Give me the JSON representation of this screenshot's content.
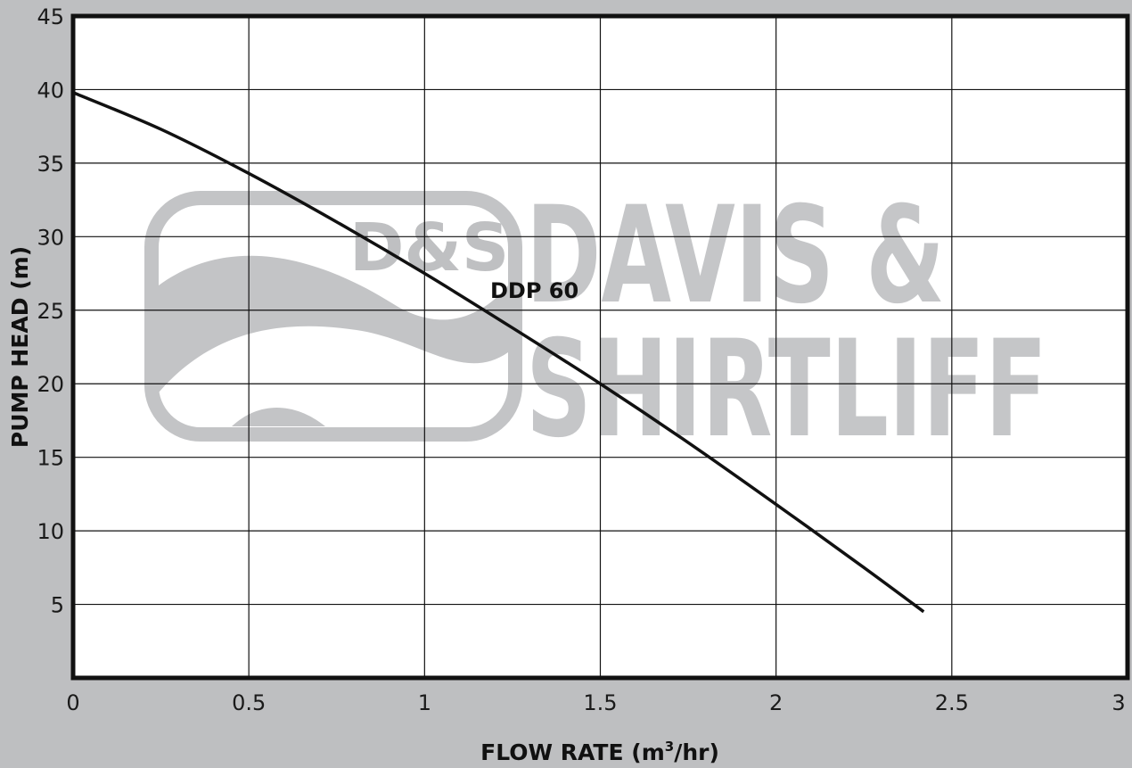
{
  "chart_data": {
    "type": "line",
    "title": "",
    "xlabel": "FLOW RATE (m",
    "xlabel_sup": "3",
    "xlabel_tail": "/hr)",
    "ylabel": "PUMP HEAD (m)",
    "xlim": [
      0,
      3
    ],
    "ylim": [
      0,
      45
    ],
    "x_ticks": [
      0,
      0.5,
      1,
      1.5,
      2,
      2.5,
      3
    ],
    "x_tick_labels": [
      "0",
      "0.5",
      "1",
      "1.5",
      "2",
      "2.5",
      "3"
    ],
    "y_ticks": [
      5,
      10,
      15,
      20,
      25,
      30,
      35,
      40,
      45
    ],
    "y_tick_labels": [
      "5",
      "10",
      "15",
      "20",
      "25",
      "30",
      "35",
      "40",
      "45"
    ],
    "grid": true,
    "series": [
      {
        "name": "DDP 60",
        "color": "#111111",
        "x": [
          0,
          0.25,
          0.5,
          0.75,
          1.0,
          1.25,
          1.5,
          1.75,
          2.0,
          2.25,
          2.42
        ],
        "y": [
          39.8,
          37.3,
          34.3,
          31.0,
          27.5,
          23.8,
          20.0,
          16.0,
          11.8,
          7.5,
          4.5
        ]
      }
    ],
    "colors": {
      "background": "#bebfc1",
      "plot_area": "#ffffff",
      "grid": "#111111",
      "watermark": "#c5c6c8"
    }
  },
  "watermark": {
    "monogram": "D&S",
    "line1": "DAVIS &",
    "line2": "SHIRTLIFF"
  }
}
